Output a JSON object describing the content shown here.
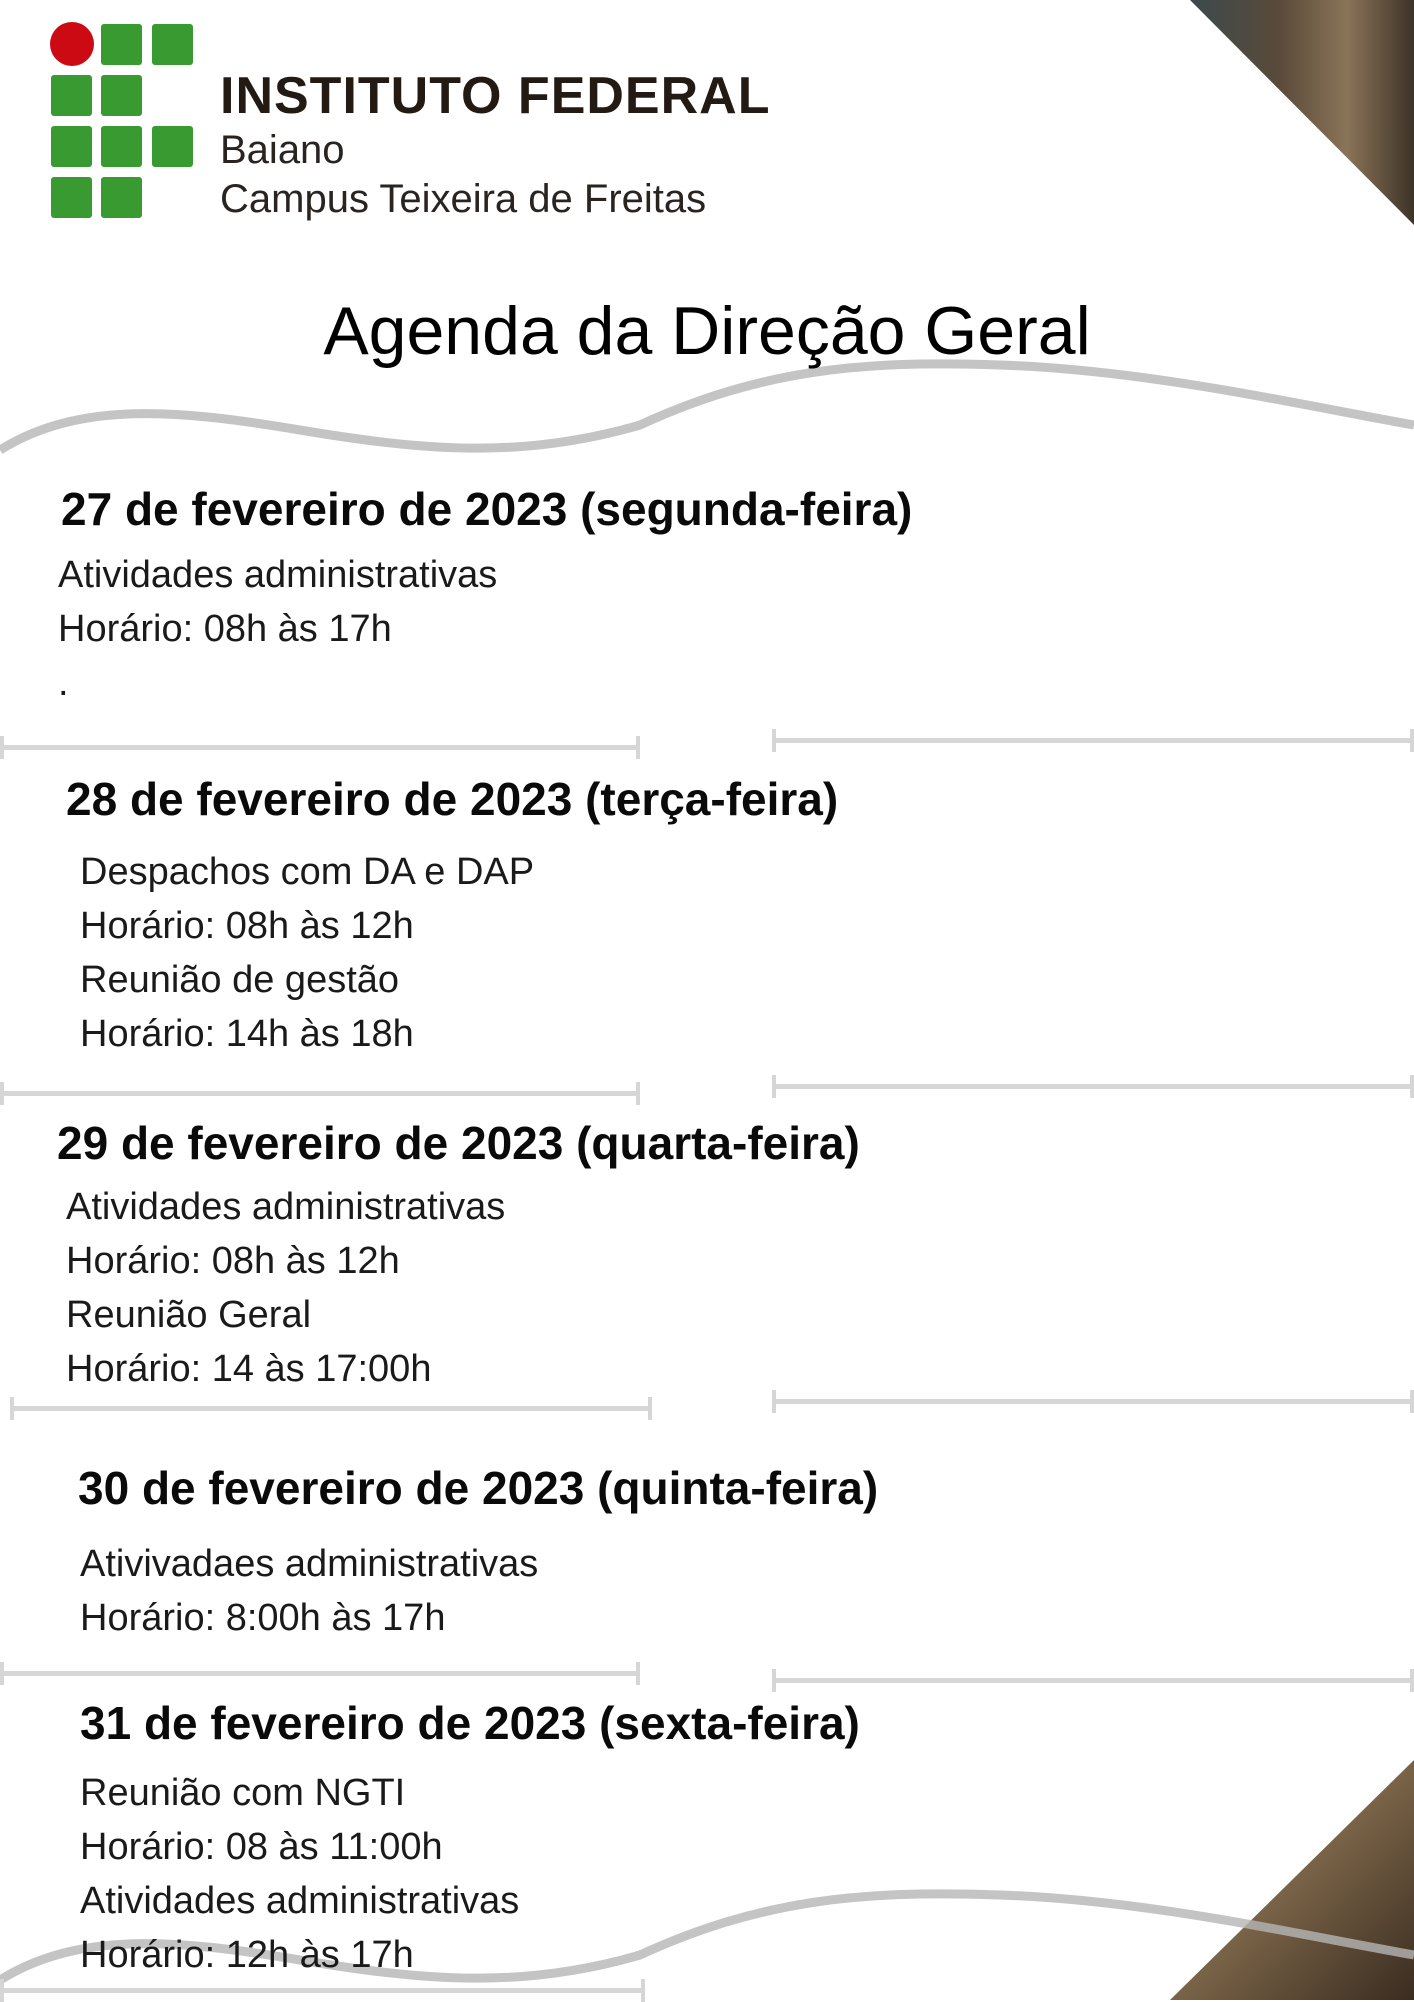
{
  "logo": {
    "line1": "INSTITUTO FEDERAL",
    "line2": "Baiano",
    "line3": "Campus Teixeira de Freitas",
    "colors": {
      "green": "#3a9a32",
      "red": "#cc0a14"
    }
  },
  "title": "Agenda da Direção Geral",
  "days": [
    {
      "heading": "27 de fevereiro de 2023 (segunda-feira)",
      "lines": [
        "Atividades administrativas",
        "Horário: 08h às 17h",
        "."
      ]
    },
    {
      "heading": "28 de fevereiro de 2023 (terça-feira)",
      "lines": [
        "Despachos com DA e DAP",
        "Horário: 08h às 12h",
        "Reunião de gestão",
        "Horário: 14h às 18h"
      ]
    },
    {
      "heading": "29 de fevereiro de 2023 (quarta-feira)",
      "lines": [
        "Atividades administrativas",
        "Horário: 08h às 12h",
        "Reunião Geral",
        "Horário: 14 às 17:00h"
      ]
    },
    {
      "heading": "30 de fevereiro de 2023 (quinta-feira)",
      "lines": [
        "Ativivadaes administrativas",
        "Horário: 8:00h às 17h"
      ]
    },
    {
      "heading": "31 de fevereiro de 2023 (sexta-feira)",
      "lines": [
        "Reunião com NGTI",
        "Horário: 08 às 11:00h",
        "Atividades administrativas",
        "Horário: 12h às 17h"
      ]
    }
  ]
}
